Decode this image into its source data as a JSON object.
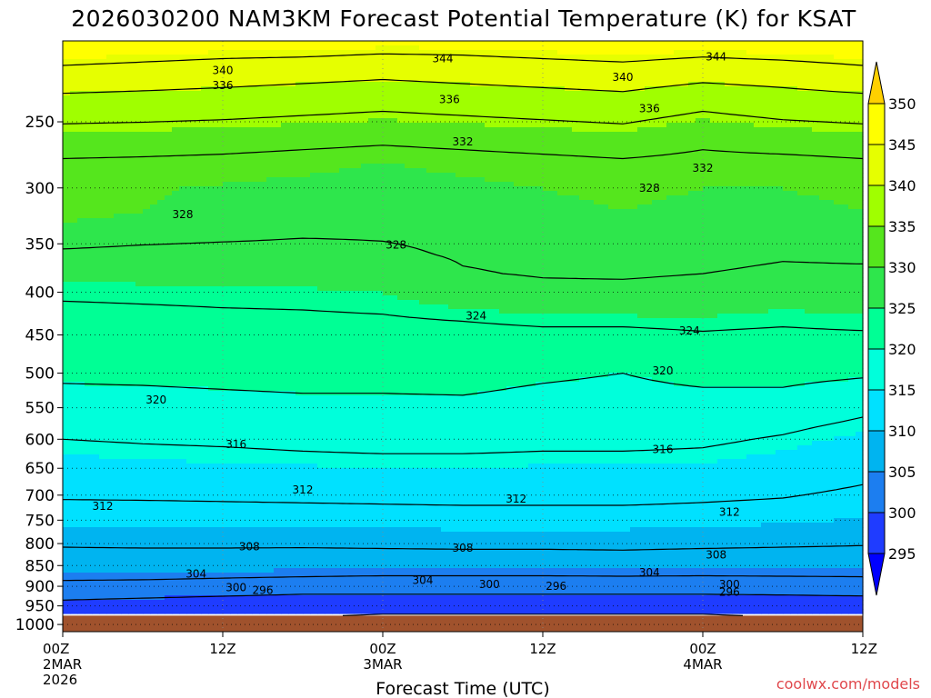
{
  "title": "2026030200 NAM3KM Forecast Potential Temperature (K) for KSAT",
  "credit": "coolwx.com/models",
  "colors": {
    "credit": "#e0484c",
    "ground": "#a0522d",
    "grid": "#888888",
    "contour": "#000000"
  },
  "chart_data": {
    "type": "heatmap",
    "title": "2026030200 NAM3KM Forecast Potential Temperature (K) for KSAT",
    "xlabel": "Forecast Time (UTC)",
    "ylabel": "",
    "x_range_hours": [
      0,
      60
    ],
    "y_range_hpa": [
      200,
      1020
    ],
    "y_scale": "log",
    "x_ticks": [
      {
        "hour": 0,
        "lines": [
          "00Z",
          "2MAR",
          "2026"
        ]
      },
      {
        "hour": 12,
        "lines": [
          "12Z"
        ]
      },
      {
        "hour": 24,
        "lines": [
          "00Z",
          "3MAR"
        ]
      },
      {
        "hour": 36,
        "lines": [
          "12Z"
        ]
      },
      {
        "hour": 48,
        "lines": [
          "00Z",
          "4MAR"
        ]
      },
      {
        "hour": 60,
        "lines": [
          "12Z"
        ]
      }
    ],
    "y_ticks": [
      250,
      300,
      350,
      400,
      450,
      500,
      550,
      600,
      650,
      700,
      750,
      800,
      850,
      900,
      950,
      1000
    ],
    "hours": [
      0,
      6,
      12,
      18,
      24,
      30,
      36,
      42,
      48,
      54,
      60
    ],
    "surface_pressure_hpa": [
      976,
      976,
      976,
      976,
      976,
      976,
      976,
      976,
      976,
      976,
      976
    ],
    "contour_interval_k": 4,
    "contour_levels": [
      296,
      300,
      304,
      308,
      312,
      316,
      320,
      324,
      328,
      332,
      336,
      340,
      344
    ],
    "profiles": {
      "pressure_levels_hpa": [
        200,
        220,
        240,
        260,
        280,
        300,
        320,
        340,
        360,
        380,
        400,
        420,
        440,
        460,
        480,
        500,
        520,
        540,
        560,
        580,
        600,
        620,
        640,
        660,
        680,
        700,
        720,
        740,
        760,
        780,
        800,
        820,
        840,
        860,
        880,
        900,
        920,
        940,
        960,
        980
      ],
      "theta_k": [
        [
          347.5,
          342.5,
          338.0,
          334.5,
          331.5,
          330.5,
          330.5,
          329.5,
          327.5,
          325.5,
          324.5,
          323.5,
          322.8,
          322.0,
          321.2,
          320.5,
          319.8,
          319.0,
          318.0,
          317.0,
          316.0,
          315.2,
          314.5,
          313.8,
          313.0,
          312.3,
          311.6,
          310.8,
          310.0,
          309.2,
          308.4,
          307.4,
          306.4,
          305.4,
          304.4,
          303.0,
          301.5,
          299.5,
          298.0,
          297.5
        ],
        [
          347.0,
          342.0,
          337.8,
          334.3,
          331.3,
          330.2,
          330.0,
          329.0,
          327.2,
          325.5,
          324.6,
          323.7,
          323.0,
          322.2,
          321.4,
          320.6,
          319.9,
          319.2,
          318.3,
          317.3,
          316.3,
          315.5,
          314.8,
          314.0,
          313.2,
          312.4,
          311.6,
          310.9,
          310.1,
          309.3,
          308.5,
          307.5,
          306.5,
          305.5,
          304.3,
          302.8,
          301.0,
          299.0,
          297.5,
          297.0
        ],
        [
          346.5,
          341.5,
          337.5,
          334.0,
          331.0,
          329.8,
          329.5,
          328.7,
          327.0,
          325.4,
          324.7,
          323.9,
          323.2,
          322.4,
          321.6,
          320.8,
          320.1,
          319.4,
          318.5,
          317.5,
          316.5,
          315.7,
          315.0,
          314.2,
          313.3,
          312.5,
          311.7,
          310.9,
          310.1,
          309.3,
          308.5,
          307.5,
          306.3,
          305.2,
          304.0,
          302.5,
          300.5,
          298.5,
          297.0,
          296.5
        ],
        [
          346.5,
          341.0,
          337.0,
          333.5,
          330.5,
          329.5,
          329.0,
          328.3,
          327.0,
          325.5,
          324.8,
          324.0,
          323.3,
          322.5,
          321.8,
          321.0,
          320.3,
          319.6,
          318.7,
          317.7,
          316.8,
          316.0,
          315.2,
          314.4,
          313.5,
          312.6,
          311.8,
          311.0,
          310.2,
          309.4,
          308.5,
          307.4,
          306.2,
          305.0,
          303.8,
          302.2,
          300.0,
          298.0,
          296.5,
          296.0
        ],
        [
          346.0,
          340.5,
          336.5,
          333.0,
          330.0,
          329.0,
          328.8,
          328.3,
          327.5,
          326.0,
          325.0,
          324.2,
          323.4,
          322.6,
          321.8,
          321.0,
          320.3,
          319.6,
          318.8,
          317.9,
          317.0,
          316.2,
          315.3,
          314.5,
          313.6,
          312.7,
          311.9,
          311.1,
          310.3,
          309.5,
          308.6,
          307.5,
          306.2,
          305.0,
          303.6,
          302.0,
          300.0,
          297.8,
          296.3,
          295.8
        ],
        [
          346.0,
          341.0,
          337.0,
          333.5,
          330.5,
          329.5,
          329.0,
          328.6,
          328.3,
          327.8,
          326.5,
          324.8,
          323.6,
          322.7,
          321.9,
          321.1,
          320.4,
          319.7,
          318.9,
          318.0,
          317.1,
          316.2,
          315.3,
          314.5,
          313.6,
          312.8,
          312.0,
          311.2,
          310.4,
          309.6,
          308.7,
          307.6,
          306.3,
          305.0,
          303.6,
          302.0,
          300.0,
          297.8,
          296.3,
          295.8
        ],
        [
          346.5,
          341.5,
          337.5,
          334.0,
          331.0,
          330.0,
          329.5,
          329.0,
          328.6,
          328.2,
          327.3,
          325.5,
          324.0,
          323.0,
          322.0,
          320.5,
          319.8,
          319.2,
          318.5,
          317.7,
          316.8,
          316.0,
          315.2,
          314.4,
          313.6,
          312.8,
          312.0,
          311.2,
          310.4,
          309.6,
          308.7,
          307.6,
          306.3,
          305.0,
          303.6,
          302.0,
          300.0,
          297.8,
          296.3,
          295.8
        ],
        [
          347.0,
          342.0,
          338.0,
          334.5,
          331.5,
          330.5,
          330.0,
          329.3,
          328.8,
          328.3,
          327.3,
          325.5,
          324.0,
          322.8,
          321.5,
          320.0,
          319.4,
          318.8,
          318.2,
          317.5,
          316.8,
          316.0,
          315.2,
          314.4,
          313.6,
          312.8,
          312.0,
          311.2,
          310.4,
          309.6,
          308.8,
          307.7,
          306.4,
          305.0,
          303.7,
          302.0,
          300.0,
          297.8,
          296.3,
          295.8
        ],
        [
          346.5,
          341.0,
          336.5,
          333.0,
          331.0,
          330.0,
          329.5,
          329.2,
          328.8,
          328.0,
          327.0,
          325.5,
          324.3,
          323.2,
          322.0,
          321.0,
          320.0,
          319.0,
          318.0,
          317.2,
          316.5,
          315.8,
          315.0,
          314.2,
          313.3,
          312.5,
          311.8,
          311.0,
          310.2,
          309.4,
          308.6,
          307.5,
          306.3,
          305.0,
          303.6,
          302.0,
          300.0,
          297.8,
          296.3,
          295.8
        ],
        [
          347.0,
          341.5,
          337.5,
          334.0,
          331.0,
          330.0,
          329.5,
          329.0,
          328.3,
          327.5,
          326.5,
          325.0,
          324.0,
          323.0,
          322.0,
          321.0,
          320.0,
          318.8,
          317.5,
          316.5,
          315.7,
          315.0,
          314.3,
          313.6,
          312.9,
          312.2,
          311.5,
          310.7,
          309.9,
          309.1,
          308.4,
          307.4,
          306.2,
          305.0,
          303.7,
          302.2,
          300.2,
          298.0,
          296.5,
          296.0
        ],
        [
          347.5,
          342.5,
          338.0,
          334.5,
          331.5,
          330.5,
          330.0,
          329.5,
          328.5,
          327.5,
          326.5,
          325.3,
          324.3,
          323.0,
          321.8,
          320.5,
          319.0,
          317.5,
          316.2,
          315.3,
          314.5,
          313.8,
          313.2,
          312.6,
          312.0,
          311.4,
          310.8,
          310.2,
          309.5,
          308.8,
          308.2,
          307.3,
          306.2,
          305.0,
          303.8,
          302.4,
          300.5,
          298.2,
          296.8,
          296.2
        ]
      ]
    },
    "contour_labels": [
      {
        "text": "344",
        "hour": 28.5,
        "hpa": 210
      },
      {
        "text": "344",
        "hour": 49.0,
        "hpa": 209
      },
      {
        "text": "340",
        "hour": 12.0,
        "hpa": 217
      },
      {
        "text": "340",
        "hour": 42.0,
        "hpa": 221
      },
      {
        "text": "336",
        "hour": 12.0,
        "hpa": 226
      },
      {
        "text": "336",
        "hour": 29.0,
        "hpa": 235
      },
      {
        "text": "336",
        "hour": 44.0,
        "hpa": 241
      },
      {
        "text": "332",
        "hour": 30.0,
        "hpa": 264
      },
      {
        "text": "332",
        "hour": 48.0,
        "hpa": 284
      },
      {
        "text": "328",
        "hour": 9.0,
        "hpa": 323
      },
      {
        "text": "328",
        "hour": 25.0,
        "hpa": 351
      },
      {
        "text": "328",
        "hour": 44.0,
        "hpa": 300
      },
      {
        "text": "324",
        "hour": 31.0,
        "hpa": 427
      },
      {
        "text": "324",
        "hour": 47.0,
        "hpa": 445
      },
      {
        "text": "320",
        "hour": 7.0,
        "hpa": 538
      },
      {
        "text": "320",
        "hour": 45.0,
        "hpa": 497
      },
      {
        "text": "316",
        "hour": 13.0,
        "hpa": 609
      },
      {
        "text": "316",
        "hour": 45.0,
        "hpa": 617
      },
      {
        "text": "312",
        "hour": 18.0,
        "hpa": 690
      },
      {
        "text": "312",
        "hour": 3.0,
        "hpa": 722
      },
      {
        "text": "312",
        "hour": 34.0,
        "hpa": 707
      },
      {
        "text": "312",
        "hour": 50.0,
        "hpa": 734
      },
      {
        "text": "308",
        "hour": 14.0,
        "hpa": 807
      },
      {
        "text": "308",
        "hour": 30.0,
        "hpa": 810
      },
      {
        "text": "308",
        "hour": 49.0,
        "hpa": 825
      },
      {
        "text": "304",
        "hour": 10.0,
        "hpa": 870
      },
      {
        "text": "304",
        "hour": 27.0,
        "hpa": 885
      },
      {
        "text": "304",
        "hour": 44.0,
        "hpa": 867
      },
      {
        "text": "300",
        "hour": 13.0,
        "hpa": 903
      },
      {
        "text": "300",
        "hour": 32.0,
        "hpa": 895
      },
      {
        "text": "300",
        "hour": 50.0,
        "hpa": 895
      },
      {
        "text": "296",
        "hour": 15.0,
        "hpa": 910
      },
      {
        "text": "296",
        "hour": 37.0,
        "hpa": 900
      },
      {
        "text": "296",
        "hour": 50.0,
        "hpa": 915
      }
    ],
    "colorbar": {
      "levels": [
        295,
        300,
        305,
        310,
        315,
        320,
        325,
        330,
        335,
        340,
        345,
        350
      ],
      "tick_labels": [
        "295",
        "300",
        "305",
        "310",
        "315",
        "320",
        "325",
        "330",
        "335",
        "340",
        "345",
        "350"
      ],
      "colors": [
        "#0000ff",
        "#1f3cff",
        "#1c7ef0",
        "#00b4f0",
        "#00e1ff",
        "#00ffdb",
        "#00ff95",
        "#2ee64c",
        "#55e61d",
        "#a0ff00",
        "#e6ff00",
        "#ffff00",
        "#ffd000"
      ],
      "bin_labels": [
        "below 295",
        "295 to 300",
        "300 to 305",
        "305 to 310",
        "310 to 315",
        "315 to 320",
        "320 to 325",
        "325 to 330",
        "330 to 335",
        "335 to 340",
        "340 to 345",
        "345 to 350",
        "above 350"
      ]
    }
  }
}
